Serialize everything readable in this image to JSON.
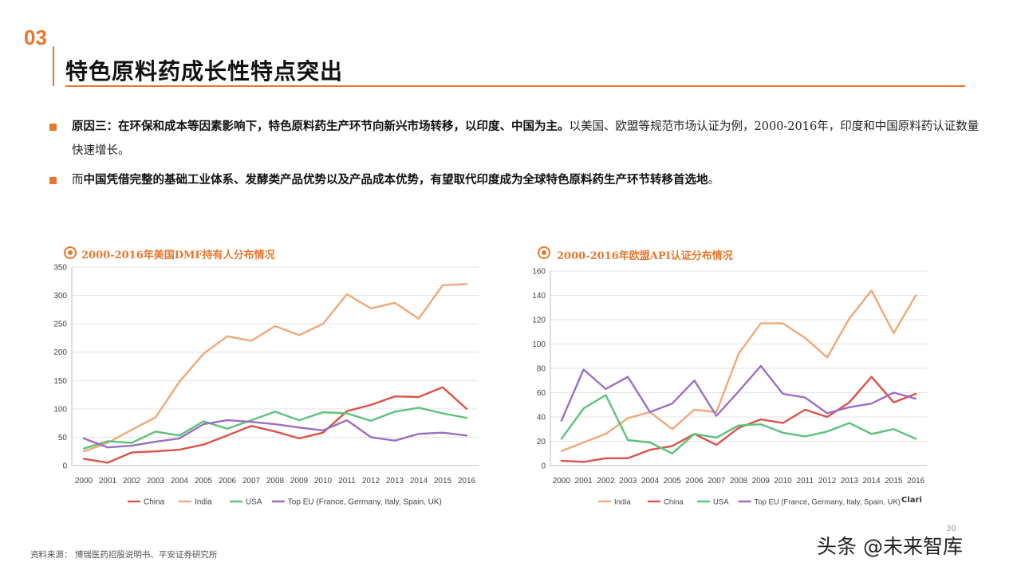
{
  "header": {
    "section_number": "03",
    "title": "特色原料药成长性特点突出"
  },
  "bullets": [
    {
      "bold": "原因三：在环保和成本等因素影响下，特色原料药生产环节向新兴市场转移，以印度、中国为主。",
      "normal": "以美国、欧盟等规范市场认证为例，2000-2016年，印度和中国原料药认证数量快速增长。"
    },
    {
      "lead": "而",
      "bold": "中国凭借完整的基础工业体系、发酵类产品优势以及产品成本优势，有望取代印度成为全球特色原料药生产环节转移首选地",
      "tail": "。"
    }
  ],
  "colors": {
    "accent": "#E8772E",
    "China": "#D9534A",
    "India": "#F0A878",
    "USA": "#5CC27A",
    "TopEU": "#9A6FC3"
  },
  "chart_data": [
    {
      "type": "line",
      "title": "2000-2016年美国DMF持有人分布情况",
      "x": [
        "2000",
        "2001",
        "2002",
        "2003",
        "2004",
        "2005",
        "2006",
        "2007",
        "2008",
        "2009",
        "2010",
        "2011",
        "2012",
        "2013",
        "2014",
        "2015",
        "2016"
      ],
      "ylim": [
        0,
        350
      ],
      "yticks": [
        0,
        50,
        100,
        150,
        200,
        250,
        300,
        350
      ],
      "grid": true,
      "legend": "bottom",
      "series": [
        {
          "name": "China",
          "color": "#D9534A",
          "values": [
            12,
            5,
            23,
            25,
            28,
            37,
            53,
            70,
            60,
            48,
            58,
            96,
            107,
            122,
            121,
            138,
            100
          ]
        },
        {
          "name": "India",
          "color": "#F0A878",
          "values": [
            25,
            40,
            63,
            85,
            148,
            197,
            228,
            220,
            246,
            230,
            250,
            302,
            277,
            287,
            259,
            318,
            320
          ]
        },
        {
          "name": "USA",
          "color": "#5CC27A",
          "values": [
            30,
            43,
            40,
            60,
            53,
            78,
            65,
            80,
            95,
            80,
            94,
            92,
            79,
            95,
            102,
            92,
            84
          ]
        },
        {
          "name": "Top EU (France, Germany, Italy, Spain, UK)",
          "color": "#9A6FC3",
          "values": [
            48,
            32,
            35,
            42,
            48,
            73,
            80,
            77,
            73,
            67,
            62,
            80,
            50,
            44,
            56,
            58,
            53
          ]
        }
      ]
    },
    {
      "type": "line",
      "title": "2000-2016年欧盟API认证分布情况",
      "x": [
        "2000",
        "2001",
        "2002",
        "2003",
        "2004",
        "2005",
        "2006",
        "2007",
        "2008",
        "2009",
        "2010",
        "2011",
        "2012",
        "2013",
        "2014",
        "2015",
        "2016"
      ],
      "ylim": [
        0,
        160
      ],
      "yticks": [
        0,
        20,
        40,
        60,
        80,
        100,
        120,
        140,
        160
      ],
      "grid": true,
      "legend": "bottom",
      "series": [
        {
          "name": "India",
          "color": "#F0A878",
          "values": [
            12,
            19,
            26,
            39,
            44,
            30,
            46,
            44,
            92,
            117,
            117,
            105,
            89,
            121,
            144,
            109,
            140
          ]
        },
        {
          "name": "China",
          "color": "#D9534A",
          "values": [
            4,
            3,
            6,
            6,
            13,
            16,
            26,
            17,
            31,
            38,
            35,
            46,
            40,
            52,
            73,
            52,
            59
          ]
        },
        {
          "name": "USA",
          "color": "#5CC27A",
          "values": [
            22,
            47,
            58,
            21,
            19,
            10,
            26,
            23,
            33,
            34,
            27,
            24,
            28,
            35,
            26,
            30,
            22
          ]
        },
        {
          "name": "Top EU (France, Germany, Italy, Spain, UK)",
          "color": "#9A6FC3",
          "values": [
            37,
            79,
            63,
            73,
            44,
            51,
            70,
            41,
            61,
            82,
            59,
            56,
            43,
            48,
            51,
            60,
            55
          ]
        }
      ]
    }
  ],
  "chart_branding": "Clari",
  "source": "资料来源：  博瑞医药招股说明书、平安证券研究所",
  "page_number": "30",
  "watermark": "头条 @未来智库"
}
